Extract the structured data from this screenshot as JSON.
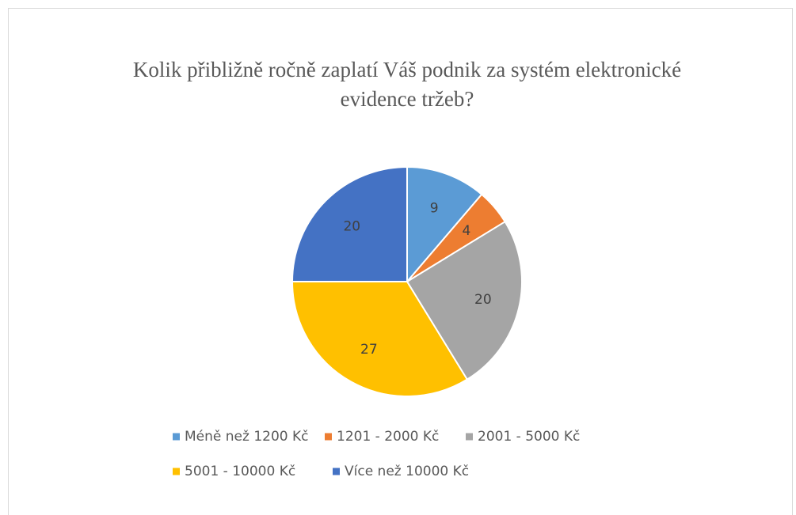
{
  "chart_data": {
    "type": "pie",
    "title": "Kolik přibližně ročně zaplatí Váš podnik za systém elektronické evidence tržeb?",
    "categories": [
      "Méně než 1200 Kč",
      "1201 - 2000 Kč",
      "2001 - 5000 Kč",
      "5001 - 10000 Kč",
      "Více než 10000 Kč"
    ],
    "values": [
      9,
      4,
      20,
      27,
      20
    ],
    "colors": [
      "#5b9bd5",
      "#ed7d31",
      "#a5a5a5",
      "#ffc000",
      "#4472c4"
    ],
    "legend": "bottom"
  }
}
